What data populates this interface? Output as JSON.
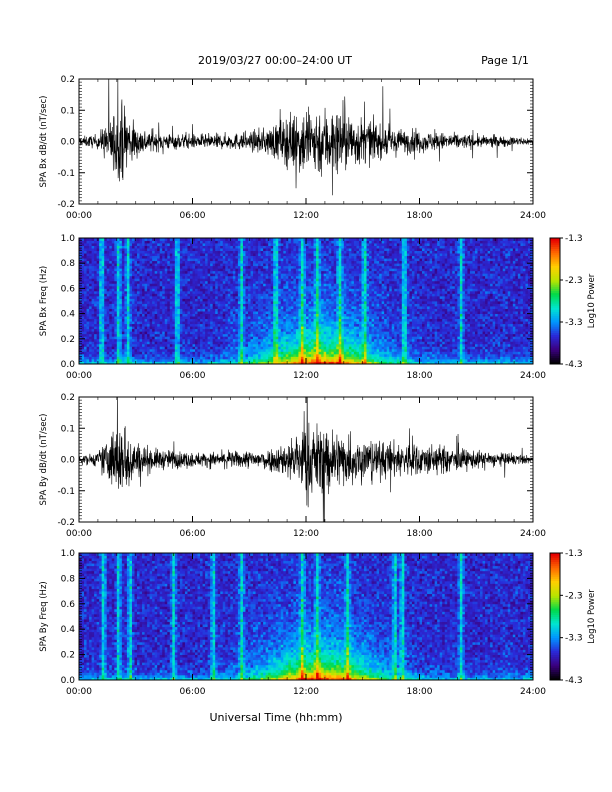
{
  "header": {
    "title": "2019/03/27  00:00–24:00 UT",
    "page": "Page 1/1"
  },
  "xaxis": {
    "label": "Universal Time (hh:mm)",
    "ticks": [
      "00:00",
      "06:00",
      "12:00",
      "18:00",
      "24:00"
    ],
    "range_hours": [
      0,
      24
    ]
  },
  "colorbar": {
    "label": "Log10 Power",
    "ticks": [
      "-1.3",
      "-2.3",
      "-3.3",
      "-4.3"
    ],
    "range": [
      -4.3,
      -1.3
    ],
    "palette": [
      "#000000",
      "#3b0080",
      "#2a2ad8",
      "#0096ff",
      "#00e6d0",
      "#00d94a",
      "#b8e600",
      "#ffd000",
      "#ff6a00",
      "#e60000"
    ]
  },
  "chart_data": [
    {
      "type": "line",
      "ylabel": "SPA Bx dB/dt (nT/sec)",
      "ylim": [
        -0.2,
        0.2
      ],
      "yticks": [
        "0.2",
        "0.1",
        "0.0",
        "-0.1",
        "-0.2"
      ],
      "xlim_hours": [
        0,
        24
      ],
      "envelope": {
        "hours": [
          0,
          1,
          2,
          2.5,
          3,
          4,
          5,
          6,
          7,
          8,
          9,
          10,
          11,
          12,
          12.5,
          13,
          14,
          15,
          16,
          17,
          18,
          19,
          20,
          21,
          22,
          23,
          24
        ],
        "amplitude": [
          0.025,
          0.04,
          0.2,
          0.2,
          0.09,
          0.05,
          0.045,
          0.04,
          0.04,
          0.045,
          0.05,
          0.08,
          0.14,
          0.2,
          0.2,
          0.2,
          0.17,
          0.13,
          0.09,
          0.07,
          0.06,
          0.05,
          0.045,
          0.035,
          0.03,
          0.025,
          0.02
        ]
      }
    },
    {
      "type": "heatmap",
      "ylabel": "SPA Bx Freq (Hz)",
      "ylim": [
        0.0,
        1.0
      ],
      "yticks": [
        "1.0",
        "0.8",
        "0.6",
        "0.4",
        "0.2",
        "0.0"
      ],
      "xlim_hours": [
        0,
        24
      ],
      "clim": [
        -4.3,
        -1.3
      ],
      "bursts_hours": [
        1.2,
        2.1,
        2.6,
        5.2,
        8.6,
        10.4,
        11.8,
        12.6,
        13.8,
        15.1,
        17.2,
        20.2
      ]
    },
    {
      "type": "line",
      "ylabel": "SPA By dB/dt (nT/sec)",
      "ylim": [
        -0.2,
        0.2
      ],
      "yticks": [
        "0.2",
        "0.1",
        "0.0",
        "-0.1",
        "-0.2"
      ],
      "xlim_hours": [
        0,
        24
      ],
      "envelope": {
        "hours": [
          0,
          1,
          2,
          2.5,
          3,
          4,
          5,
          6,
          7,
          8,
          9,
          10,
          11,
          12,
          12.5,
          13,
          14,
          15,
          16,
          17,
          18,
          19,
          20,
          21,
          22,
          23,
          24
        ],
        "amplitude": [
          0.02,
          0.04,
          0.2,
          0.2,
          0.1,
          0.06,
          0.05,
          0.04,
          0.04,
          0.045,
          0.05,
          0.06,
          0.1,
          0.2,
          0.2,
          0.19,
          0.15,
          0.12,
          0.1,
          0.1,
          0.09,
          0.08,
          0.06,
          0.05,
          0.04,
          0.03,
          0.02
        ]
      }
    },
    {
      "type": "heatmap",
      "ylabel": "SPA By Freq (Hz)",
      "ylim": [
        0.0,
        1.0
      ],
      "yticks": [
        "1.0",
        "0.8",
        "0.6",
        "0.4",
        "0.2",
        "0.0"
      ],
      "xlim_hours": [
        0,
        24
      ],
      "clim": [
        -4.3,
        -1.3
      ],
      "bursts_hours": [
        1.3,
        2.1,
        2.7,
        5.0,
        7.1,
        8.6,
        11.8,
        12.6,
        14.2,
        16.7,
        17.1,
        20.2
      ]
    }
  ]
}
